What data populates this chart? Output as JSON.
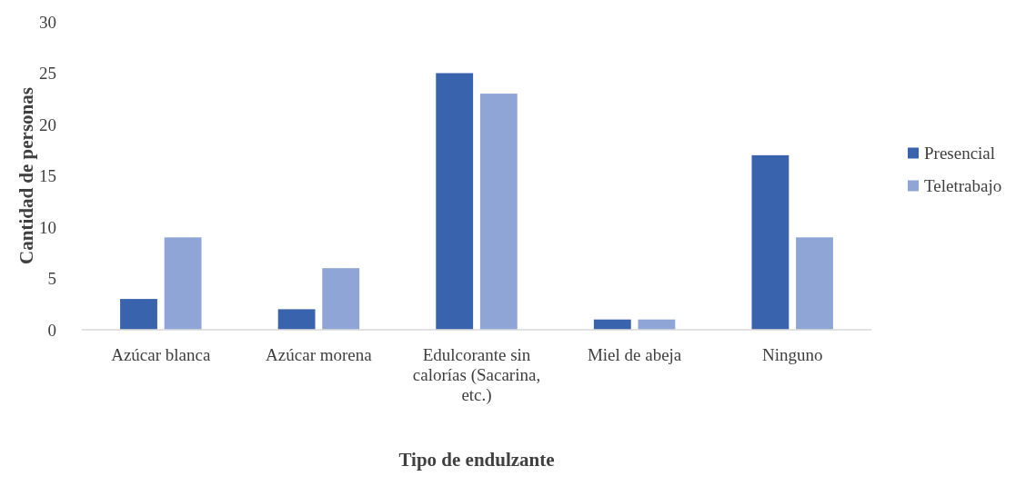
{
  "chart_data": {
    "type": "bar",
    "xlabel": "Tipo de endulzante",
    "ylabel": "Cantidad de personas",
    "categories": [
      "Azúcar blanca",
      "Azúcar morena",
      "Edulcorante sin calorías (Sacarina, etc.)",
      "Miel de abeja",
      "Ninguno"
    ],
    "series": [
      {
        "name": "Presencial",
        "color": "#3a63ad",
        "values": [
          3,
          2,
          25,
          1,
          17
        ]
      },
      {
        "name": "Teletrabajo",
        "color": "#8fa5d5",
        "values": [
          9,
          6,
          23,
          1,
          9
        ]
      }
    ],
    "ylim": [
      0,
      30
    ],
    "yticks": [
      0,
      5,
      10,
      15,
      20,
      25,
      30
    ],
    "grid": false,
    "legend": "right"
  }
}
